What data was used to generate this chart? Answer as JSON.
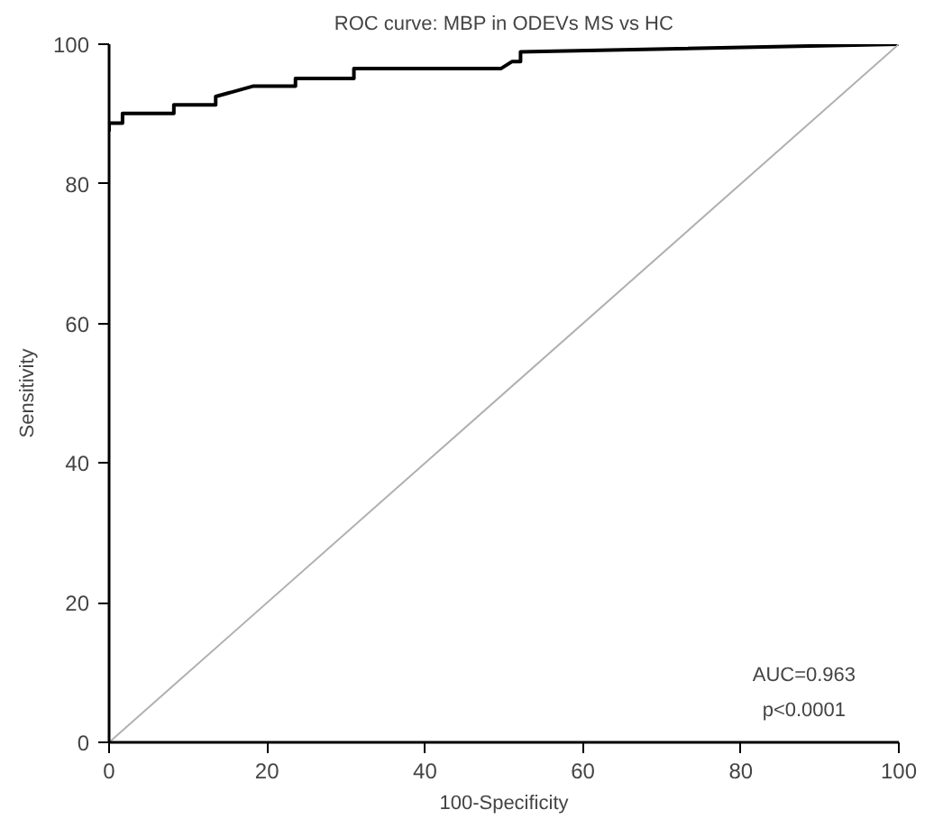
{
  "chart_data": {
    "type": "line",
    "title": "ROC curve: MBP in ODEVs MS vs HC",
    "xlabel": "100-Specificity",
    "ylabel": "Sensitivity",
    "xlim": [
      0,
      100
    ],
    "ylim": [
      0,
      100
    ],
    "xticks": [
      0,
      20,
      40,
      60,
      80,
      100
    ],
    "yticks": [
      0,
      20,
      40,
      60,
      80,
      100
    ],
    "grid": false,
    "marker": "none",
    "series": [
      {
        "color": "#000000",
        "line_style": "solid",
        "x": [
          0,
          0,
          1.7,
          1.7,
          8.2,
          8.2,
          13.5,
          13.5,
          18.3,
          23.6,
          23.6,
          31,
          31,
          49.6,
          51,
          52.1,
          52.1,
          100
        ],
        "values": [
          87.5,
          88.7,
          88.7,
          90.1,
          90.1,
          91.3,
          91.3,
          92.5,
          94,
          94,
          95.1,
          95.1,
          96.5,
          96.5,
          97.5,
          97.5,
          98.9,
          100
        ]
      },
      {
        "color": "#b0b0b0",
        "line_style": "solid",
        "x": [
          0,
          100
        ],
        "values": [
          0,
          100
        ]
      }
    ],
    "annotations": [
      "AUC=0.963",
      "p<0.0001"
    ]
  }
}
